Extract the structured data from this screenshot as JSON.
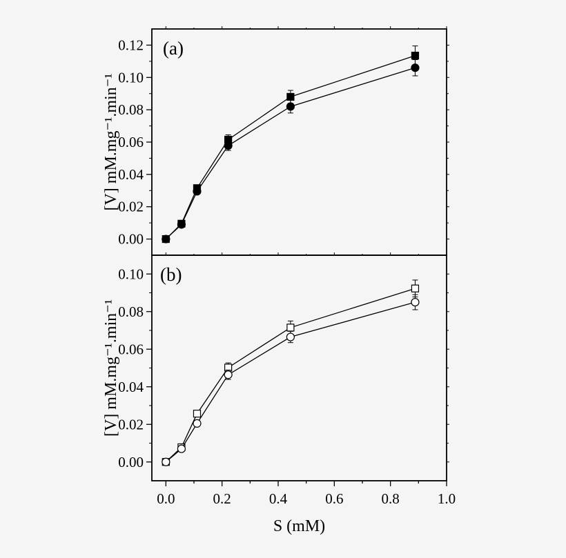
{
  "chart_data": [
    {
      "type": "line",
      "panel_label": "(a)",
      "ylabel": "[V] mM.mg⁻¹.min⁻¹",
      "xlim": [
        -0.05,
        1.0
      ],
      "ylim": [
        -0.01,
        0.13
      ],
      "yticks": [
        "0.00",
        "0.02",
        "0.04",
        "0.06",
        "0.08",
        "0.10",
        "0.12"
      ],
      "grid": false,
      "x": [
        0,
        0.0555,
        0.111,
        0.222,
        0.444,
        0.888
      ],
      "series": [
        {
          "marker": "filled-square",
          "values": [
            0,
            0.0095,
            0.0315,
            0.0615,
            0.088,
            0.1135
          ],
          "errors": [
            0,
            0.0005,
            0.001,
            0.003,
            0.004,
            0.006
          ]
        },
        {
          "marker": "filled-circle",
          "values": [
            0,
            0.009,
            0.0295,
            0.0578,
            0.082,
            0.106
          ],
          "errors": [
            0,
            0.0005,
            0.001,
            0.003,
            0.004,
            0.005
          ]
        }
      ]
    },
    {
      "type": "line",
      "panel_label": "(b)",
      "xlabel": "S (mM)",
      "ylabel": "[V] mM.mg⁻¹.min⁻¹",
      "xlim": [
        -0.05,
        1.0
      ],
      "ylim": [
        -0.01,
        0.11
      ],
      "xticks": [
        "0.0",
        "0.2",
        "0.4",
        "0.6",
        "0.8",
        "1.0"
      ],
      "yticks": [
        "0.00",
        "0.02",
        "0.04",
        "0.06",
        "0.08",
        "0.10"
      ],
      "grid": false,
      "x": [
        0,
        0.0555,
        0.111,
        0.222,
        0.444,
        0.888
      ],
      "series": [
        {
          "marker": "open-square",
          "values": [
            0,
            0.0078,
            0.0257,
            0.0502,
            0.0715,
            0.0923
          ],
          "errors": [
            0,
            0.001,
            0.001,
            0.0025,
            0.0035,
            0.0045
          ]
        },
        {
          "marker": "open-circle",
          "values": [
            0,
            0.007,
            0.0205,
            0.0464,
            0.0665,
            0.085
          ],
          "errors": [
            0,
            0.001,
            0.001,
            0.0025,
            0.003,
            0.004
          ]
        }
      ]
    }
  ]
}
